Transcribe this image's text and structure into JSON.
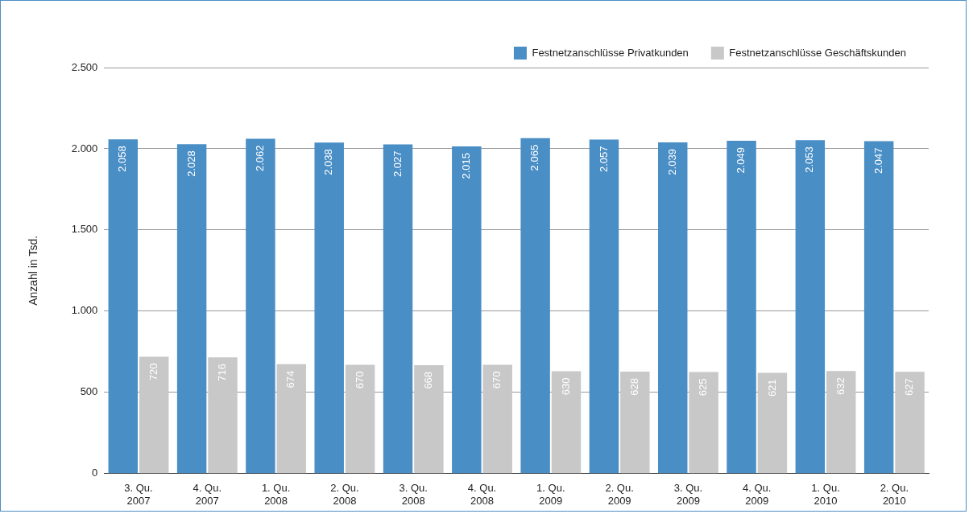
{
  "chart_data": {
    "type": "bar",
    "ylabel": "Anzahl in Tsd.",
    "categories": [
      "3. Qu.\n2007",
      "4. Qu.\n2007",
      "1. Qu.\n2008",
      "2. Qu.\n2008",
      "3. Qu.\n2008",
      "4. Qu.\n2008",
      "1. Qu.\n2009",
      "2. Qu.\n2009",
      "3. Qu.\n2009",
      "4. Qu.\n2009",
      "1. Qu.\n2010",
      "2. Qu.\n2010"
    ],
    "series": [
      {
        "name": "Festnetzanschlüsse Privatkunden",
        "color": "#4a8ec6",
        "values": [
          2058,
          2028,
          2062,
          2038,
          2027,
          2015,
          2065,
          2057,
          2039,
          2049,
          2053,
          2047
        ],
        "value_labels": [
          "2.058",
          "2.028",
          "2.062",
          "2.038",
          "2.027",
          "2.015",
          "2.065",
          "2.057",
          "2.039",
          "2.049",
          "2.053",
          "2.047"
        ]
      },
      {
        "name": "Festnetzanschlüsse Geschäftskunden",
        "color": "#c8c8c8",
        "values": [
          720,
          716,
          674,
          670,
          668,
          670,
          630,
          628,
          625,
          621,
          632,
          627
        ],
        "value_labels": [
          "720",
          "716",
          "674",
          "670",
          "668",
          "670",
          "630",
          "628",
          "625",
          "621",
          "632",
          "627"
        ]
      }
    ],
    "ylim": [
      0,
      2500
    ],
    "yticks": [
      {
        "value": 0,
        "label": "0"
      },
      {
        "value": 500,
        "label": "500"
      },
      {
        "value": 1000,
        "label": "1.000"
      },
      {
        "value": 1500,
        "label": "1.500"
      },
      {
        "value": 2000,
        "label": "2.000"
      },
      {
        "value": 2500,
        "label": "2.500"
      }
    ],
    "grid": "y",
    "legend": "top right"
  }
}
